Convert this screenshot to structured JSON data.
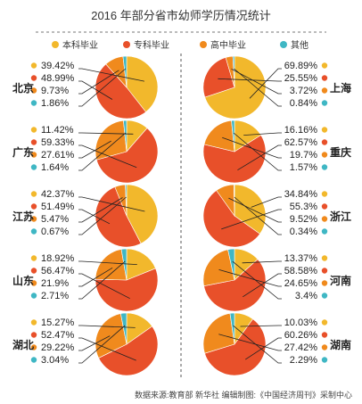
{
  "title": "2016 年部分省市幼师学历情况统计",
  "source_note": "数据来源:教育部 新华社  编辑制图:《中国经济周刊》采制中心",
  "chart_data": {
    "type": "pie",
    "title": "2016 年部分省市幼师学历情况统计",
    "legend": [
      {
        "name": "本科毕业",
        "color": "#f2b82c"
      },
      {
        "name": "专科毕业",
        "color": "#e8502a"
      },
      {
        "name": "高中毕业",
        "color": "#f08a1d"
      },
      {
        "name": "其他",
        "color": "#3fb7c4"
      }
    ],
    "charts": [
      {
        "name": "北京",
        "values": [
          "39.42%",
          "48.99%",
          "9.73%",
          "1.86%"
        ],
        "numbers": [
          39.42,
          48.99,
          9.73,
          1.86
        ]
      },
      {
        "name": "广东",
        "values": [
          "11.42%",
          "59.33%",
          "27.61%",
          "1.64%"
        ],
        "numbers": [
          11.42,
          59.33,
          27.61,
          1.64
        ]
      },
      {
        "name": "江苏",
        "values": [
          "42.37%",
          "51.49%",
          "5.47%",
          "0.67%"
        ],
        "numbers": [
          42.37,
          51.49,
          5.47,
          0.67
        ]
      },
      {
        "name": "山东",
        "values": [
          "18.92%",
          "56.47%",
          "21.9%",
          "2.71%"
        ],
        "numbers": [
          18.92,
          56.47,
          21.9,
          2.71
        ]
      },
      {
        "name": "湖北",
        "values": [
          "15.27%",
          "52.47%",
          "29.22%",
          "3.04%"
        ],
        "numbers": [
          15.27,
          52.47,
          29.22,
          3.04
        ]
      },
      {
        "name": "上海",
        "values": [
          "69.89%",
          "25.55%",
          "3.72%",
          "0.84%"
        ],
        "numbers": [
          69.89,
          25.55,
          3.72,
          0.84
        ]
      },
      {
        "name": "重庆",
        "values": [
          "16.16%",
          "62.57%",
          "19.7%",
          "1.57%"
        ],
        "numbers": [
          16.16,
          62.57,
          19.7,
          1.57
        ]
      },
      {
        "name": "浙江",
        "values": [
          "34.84%",
          "55.3%",
          "9.52%",
          "0.34%"
        ],
        "numbers": [
          34.84,
          55.3,
          9.52,
          0.34
        ]
      },
      {
        "name": "河南",
        "values": [
          "13.37%",
          "58.58%",
          "24.65%",
          "3.4%"
        ],
        "numbers": [
          13.37,
          58.58,
          24.65,
          3.4
        ]
      },
      {
        "name": "湖南",
        "values": [
          "10.03%",
          "60.26%",
          "27.42%",
          "2.29%"
        ],
        "numbers": [
          10.03,
          60.26,
          27.42,
          2.29
        ]
      }
    ]
  }
}
